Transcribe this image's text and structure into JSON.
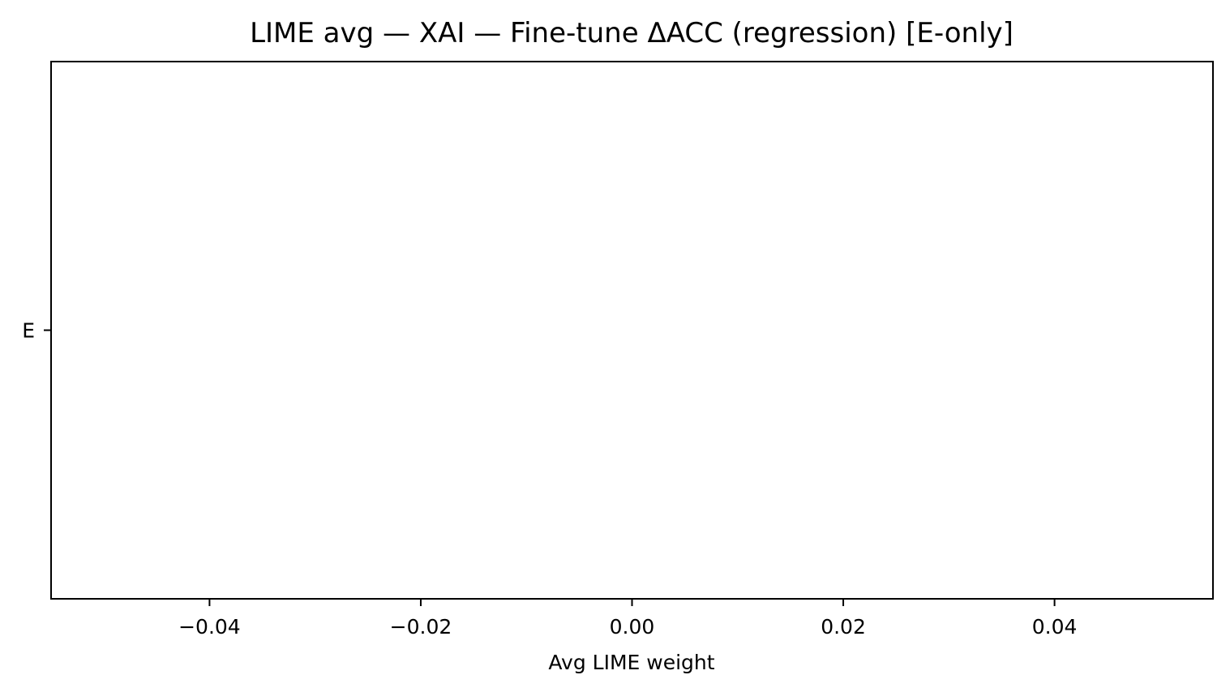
{
  "chart_data": {
    "type": "bar",
    "orientation": "horizontal",
    "title": "LIME avg — XAI — Fine-tune ΔACC (regression) [E-only]",
    "xlabel": "Avg LIME weight",
    "ylabel": "",
    "categories": [
      "E"
    ],
    "values": [
      0.0
    ],
    "xlim": [
      -0.055,
      0.055
    ],
    "xticks": [
      -0.04,
      -0.02,
      0.0,
      0.02,
      0.04
    ],
    "xtick_labels": [
      "−0.04",
      "−0.02",
      "0.00",
      "0.02",
      "0.04"
    ],
    "grid": false,
    "colors": {
      "bar_edge": "#000000",
      "axes": "#000000",
      "background": "#ffffff"
    }
  }
}
